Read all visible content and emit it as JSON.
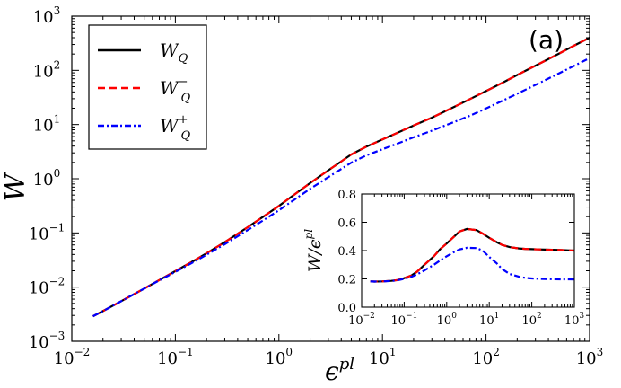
{
  "chart_data": [
    {
      "id": "main",
      "type": "line",
      "xscale": "log",
      "yscale": "log",
      "xlim": [
        0.01,
        1000
      ],
      "ylim": [
        0.001,
        1000
      ],
      "xlabel_base": "ϵ",
      "xlabel_sup": "pl",
      "ylabel": "W",
      "panel_label": "(a)",
      "xticks": [
        {
          "base": "10",
          "exp": "−2"
        },
        {
          "base": "10",
          "exp": "−1"
        },
        {
          "base": "10",
          "exp": "0"
        },
        {
          "base": "10",
          "exp": "1"
        },
        {
          "base": "10",
          "exp": "2"
        },
        {
          "base": "10",
          "exp": "3"
        }
      ],
      "yticks": [
        {
          "base": "10",
          "exp": "−3"
        },
        {
          "base": "10",
          "exp": "−2"
        },
        {
          "base": "10",
          "exp": "−1"
        },
        {
          "base": "10",
          "exp": "0"
        },
        {
          "base": "10",
          "exp": "1"
        },
        {
          "base": "10",
          "exp": "2"
        },
        {
          "base": "10",
          "exp": "3"
        }
      ],
      "legend_position": "top-left",
      "legend": [
        {
          "base": "W",
          "sub": "Q",
          "sup": "",
          "color": "#000000",
          "style": "solid"
        },
        {
          "base": "W",
          "sub": "Q",
          "sup": "−",
          "color": "#ff0000",
          "style": "dashed"
        },
        {
          "base": "W",
          "sub": "Q",
          "sup": "+",
          "color": "#0000ff",
          "style": "dashdot"
        }
      ],
      "x": [
        0.016,
        0.02,
        0.03,
        0.05,
        0.07,
        0.1,
        0.15,
        0.2,
        0.3,
        0.5,
        0.7,
        1,
        1.5,
        2,
        3,
        5,
        7,
        10,
        15,
        20,
        30,
        50,
        70,
        100,
        150,
        200,
        300,
        500,
        700,
        1000
      ],
      "series": [
        {
          "name": "W_Q",
          "color": "#000000",
          "dash": "",
          "width": 2.2,
          "values": [
            0.0029,
            0.0036,
            0.0055,
            0.0094,
            0.0135,
            0.0197,
            0.0304,
            0.042,
            0.0675,
            0.128,
            0.197,
            0.315,
            0.555,
            0.83,
            1.43,
            2.8,
            3.9,
            5.3,
            7.5,
            9.6,
            13.4,
            21.5,
            29.5,
            41.5,
            61.5,
            82,
            122,
            201,
            283,
            400
          ]
        },
        {
          "name": "W_Q^-",
          "color": "#ff0000",
          "dash": "8,5",
          "width": 2.2,
          "values": [
            0.0029,
            0.0036,
            0.0055,
            0.0094,
            0.0135,
            0.0197,
            0.0304,
            0.042,
            0.0675,
            0.128,
            0.197,
            0.315,
            0.555,
            0.83,
            1.43,
            2.8,
            3.9,
            5.3,
            7.5,
            9.6,
            13.4,
            21.5,
            29.5,
            41.5,
            61.5,
            82,
            122,
            201,
            283,
            400
          ]
        },
        {
          "name": "W_Q^+",
          "color": "#0000ff",
          "dash": "7,3,2,3",
          "width": 2.2,
          "values": [
            0.0029,
            0.0036,
            0.0055,
            0.0094,
            0.0133,
            0.0191,
            0.029,
            0.0395,
            0.062,
            0.113,
            0.169,
            0.262,
            0.445,
            0.65,
            1.07,
            1.98,
            2.7,
            3.5,
            4.7,
            5.8,
            7.7,
            11.3,
            14.6,
            19.8,
            28.5,
            37,
            54,
            87,
            120,
            168
          ]
        }
      ]
    },
    {
      "id": "inset",
      "type": "line",
      "xscale": "log",
      "yscale": "linear",
      "xlim": [
        0.01,
        1000
      ],
      "ylim": [
        0.0,
        0.8
      ],
      "ylabel_base": "W/ϵ",
      "ylabel_sup": "pl",
      "xticks": [
        {
          "base": "10",
          "exp": "−2"
        },
        {
          "base": "10",
          "exp": "−1"
        },
        {
          "base": "10",
          "exp": "0"
        },
        {
          "base": "10",
          "exp": "1"
        },
        {
          "base": "10",
          "exp": "2"
        },
        {
          "base": "10",
          "exp": "3"
        }
      ],
      "yticks": [
        "0.0",
        "0.2",
        "0.4",
        "0.6",
        "0.8"
      ],
      "x": [
        0.016,
        0.02,
        0.03,
        0.05,
        0.07,
        0.1,
        0.15,
        0.2,
        0.3,
        0.5,
        0.7,
        1,
        1.5,
        2,
        3,
        5,
        7,
        10,
        15,
        20,
        30,
        50,
        70,
        100,
        150,
        200,
        300,
        500,
        700,
        1000
      ],
      "series": [
        {
          "name": "W_Q",
          "color": "#000000",
          "dash": "",
          "width": 2.2,
          "values": [
            0.182,
            0.181,
            0.182,
            0.186,
            0.192,
            0.205,
            0.225,
            0.25,
            0.3,
            0.36,
            0.41,
            0.45,
            0.5,
            0.535,
            0.553,
            0.545,
            0.52,
            0.49,
            0.46,
            0.44,
            0.425,
            0.415,
            0.412,
            0.41,
            0.408,
            0.407,
            0.406,
            0.404,
            0.402,
            0.4
          ]
        },
        {
          "name": "W_Q^-",
          "color": "#ff0000",
          "dash": "8,5",
          "width": 2.2,
          "values": [
            0.182,
            0.181,
            0.182,
            0.186,
            0.192,
            0.205,
            0.225,
            0.25,
            0.3,
            0.36,
            0.41,
            0.45,
            0.5,
            0.535,
            0.553,
            0.545,
            0.52,
            0.49,
            0.46,
            0.44,
            0.425,
            0.415,
            0.412,
            0.41,
            0.408,
            0.407,
            0.406,
            0.404,
            0.402,
            0.4
          ]
        },
        {
          "name": "W_Q^+",
          "color": "#0000ff",
          "dash": "7,3,2,3",
          "width": 2.2,
          "values": [
            0.182,
            0.181,
            0.182,
            0.185,
            0.19,
            0.2,
            0.215,
            0.232,
            0.26,
            0.3,
            0.33,
            0.36,
            0.39,
            0.408,
            0.42,
            0.418,
            0.4,
            0.355,
            0.31,
            0.27,
            0.235,
            0.215,
            0.207,
            0.203,
            0.2,
            0.199,
            0.198,
            0.197,
            0.197,
            0.196
          ]
        }
      ]
    }
  ]
}
